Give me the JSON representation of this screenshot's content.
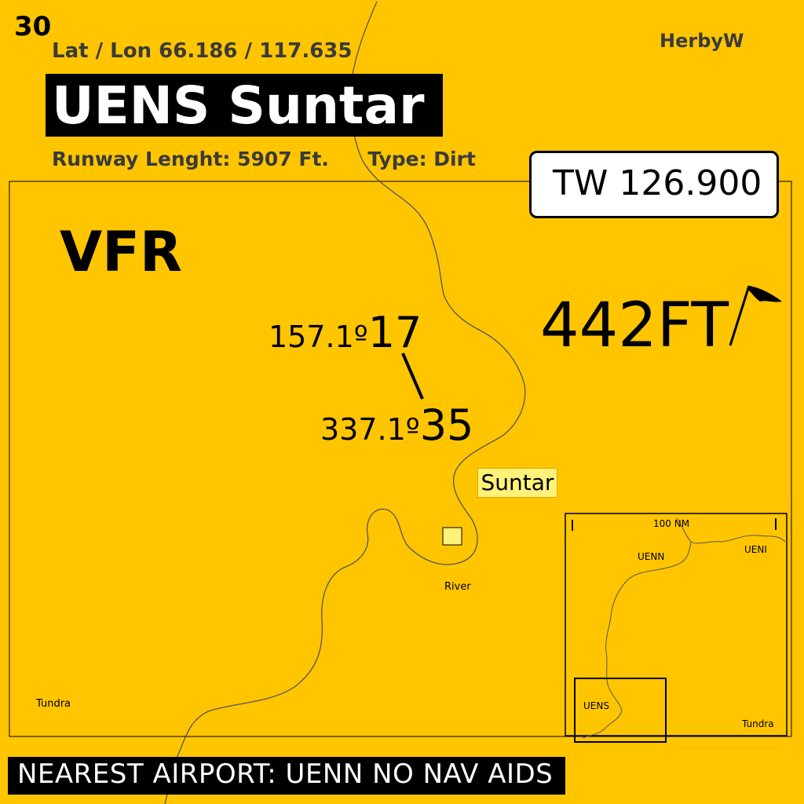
{
  "header": {
    "page_number": "30",
    "lat_lon": "Lat / Lon 66.186 / 117.635",
    "author": "HerbyW",
    "title": "UENS Suntar",
    "runway_label": "Runway Lenght:",
    "runway_length": "5907 Ft.",
    "type_label": "Type:",
    "type_value": "Dirt"
  },
  "tower": {
    "frequency": "TW 126.900"
  },
  "flight_rules": "VFR",
  "elevation": "442FT",
  "runway": {
    "end1_heading": "157.1º",
    "end1_number": "17",
    "end2_heading": "337.1º",
    "end2_number": "35"
  },
  "map_labels": {
    "town": "Suntar",
    "river": "River",
    "tundra": "Tundra"
  },
  "inset": {
    "scale": "100 NM",
    "airport_1": "UENN",
    "airport_2": "UENI",
    "airport_3": "UENS",
    "tundra": "Tundra"
  },
  "footer": {
    "text": "NEAREST  AIRPORT: UENN NO NAV AIDS"
  },
  "colors": {
    "background": "#FFC501",
    "town_fill": "#FFF27A",
    "title_bg": "#000000",
    "label_gray": "#3a3a3a"
  }
}
